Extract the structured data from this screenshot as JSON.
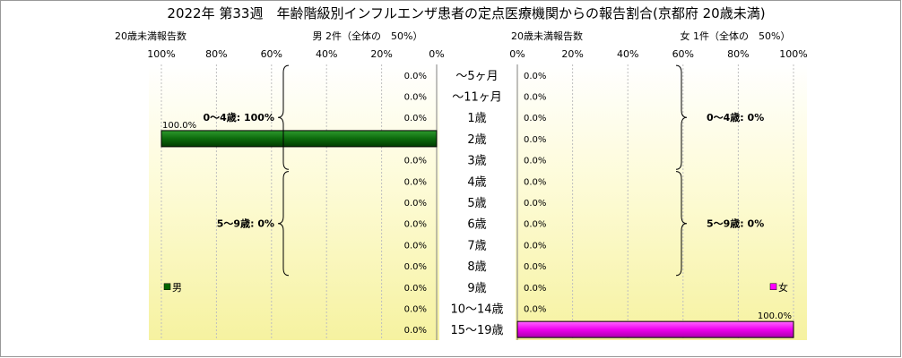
{
  "title": "2022年 第33週　年齢階級別インフルエンザ患者の定点医療機関からの報告割合(京都府 20歳未満)",
  "chart_data": [
    {
      "type": "bar",
      "orientation": "horizontal",
      "direction": "right-to-left",
      "subtitle_left": "20歳未満報告数",
      "subtitle_center": "男 2件（全体の　50%）",
      "legend": "男",
      "legend_position": "bottom-left",
      "bar_color": "#006400",
      "xlim": [
        0,
        100
      ],
      "tick_labels": [
        "100%",
        "80%",
        "60%",
        "40%",
        "20%",
        "0%"
      ],
      "categories": [
        "～5ヶ月",
        "～11ヶ月",
        "1歳",
        "2歳",
        "3歳",
        "4歳",
        "5歳",
        "6歳",
        "7歳",
        "8歳",
        "9歳",
        "10～14歳",
        "15～19歳"
      ],
      "values": [
        0,
        0,
        0,
        100,
        0,
        0,
        0,
        0,
        0,
        0,
        0,
        0,
        0
      ],
      "value_labels": [
        "0.0%",
        "0.0%",
        "0.0%",
        "100.0%",
        "0.0%",
        "0.0%",
        "0.0%",
        "0.0%",
        "0.0%",
        "0.0%",
        "0.0%",
        "0.0%",
        "0.0%"
      ],
      "group_labels": [
        "0～4歳: 100%",
        "5～9歳: 0%"
      ]
    },
    {
      "type": "bar",
      "orientation": "horizontal",
      "direction": "left-to-right",
      "subtitle_left": "20歳未満報告数",
      "subtitle_center": "女 1件（全体の　50%）",
      "legend": "女",
      "legend_position": "bottom-right",
      "bar_color": "#ff00ff",
      "xlim": [
        0,
        100
      ],
      "tick_labels": [
        "0%",
        "20%",
        "40%",
        "60%",
        "80%",
        "100%"
      ],
      "categories": [
        "～5ヶ月",
        "～11ヶ月",
        "1歳",
        "2歳",
        "3歳",
        "4歳",
        "5歳",
        "6歳",
        "7歳",
        "8歳",
        "9歳",
        "10～14歳",
        "15～19歳"
      ],
      "values": [
        0,
        0,
        0,
        0,
        0,
        0,
        0,
        0,
        0,
        0,
        0,
        0,
        100
      ],
      "value_labels": [
        "0.0%",
        "0.0%",
        "0.0%",
        "0.0%",
        "0.0%",
        "0.0%",
        "0.0%",
        "0.0%",
        "0.0%",
        "0.0%",
        "0.0%",
        "0.0%",
        "100.0%"
      ],
      "group_labels": [
        "0～4歳: 0%",
        "5～9歳: 0%"
      ]
    }
  ]
}
